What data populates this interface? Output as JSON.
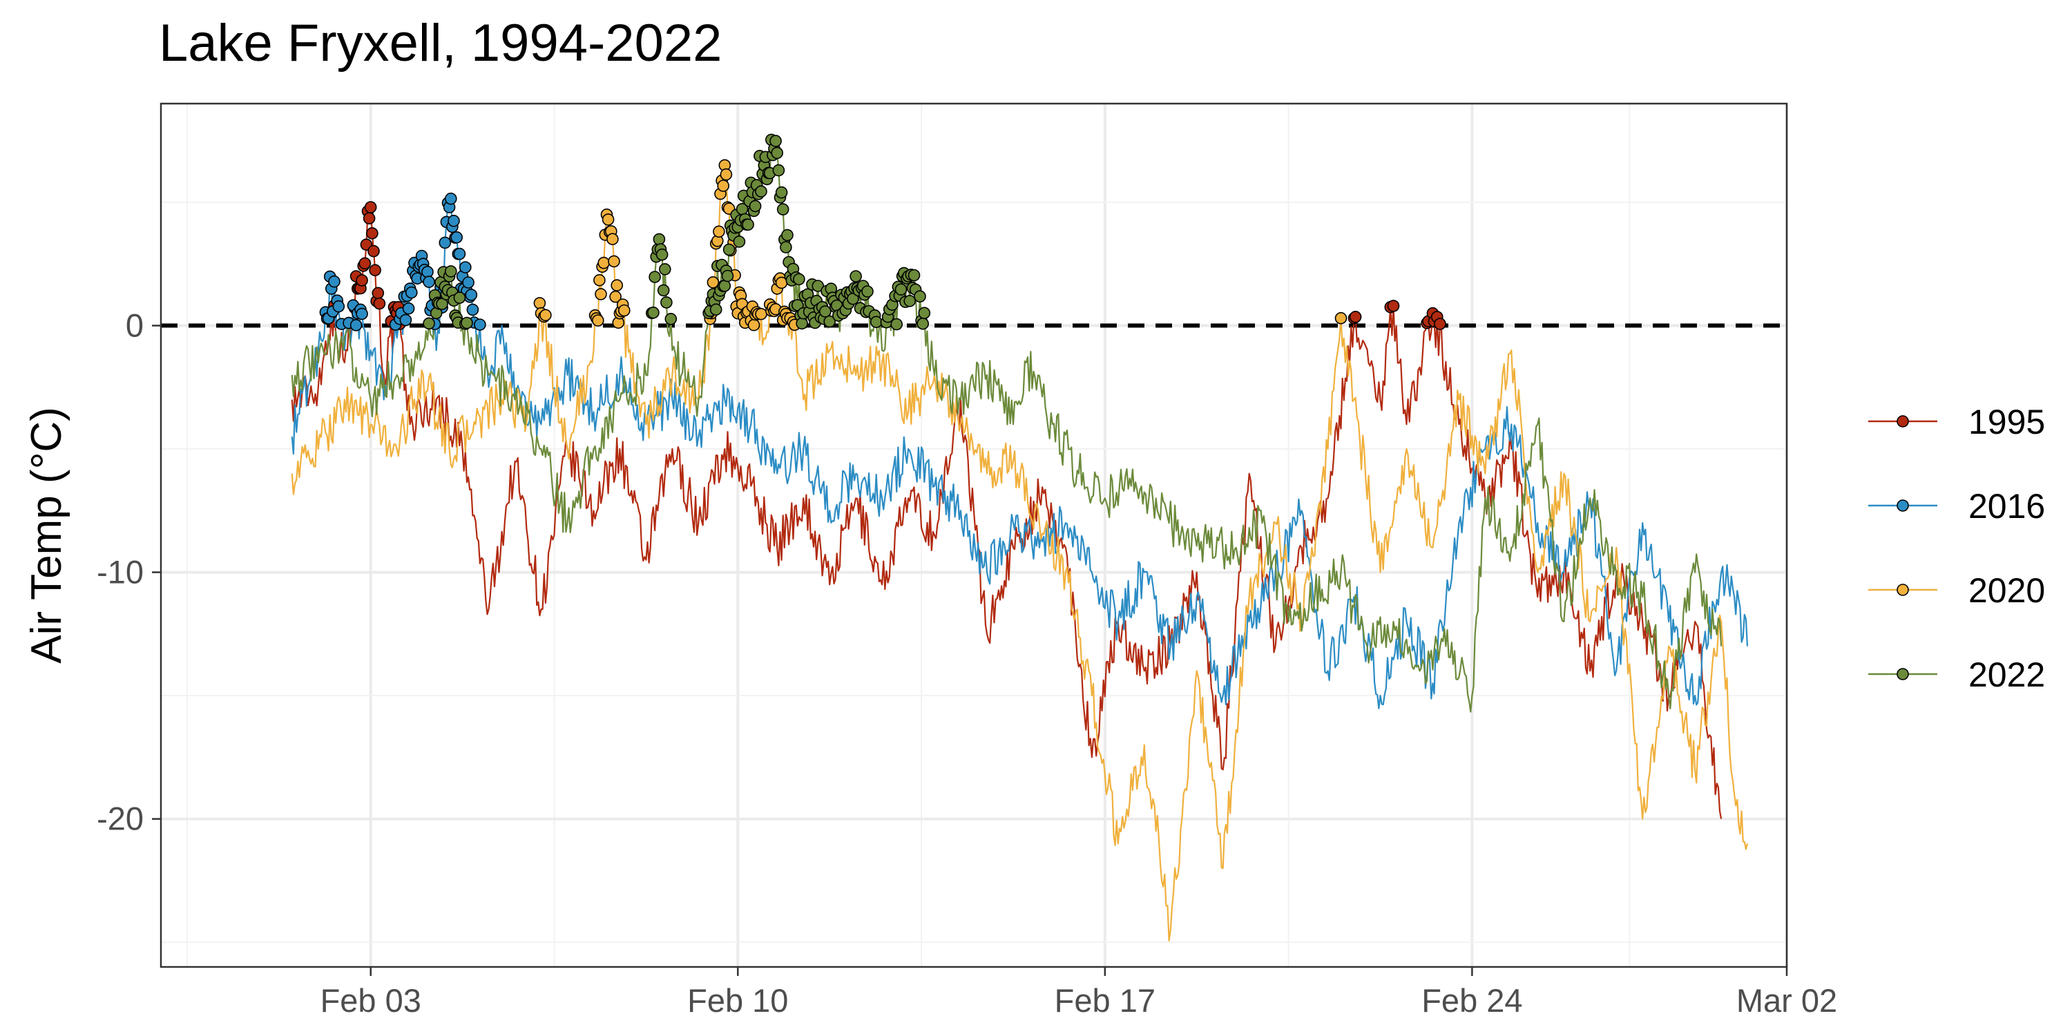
{
  "chart_data": {
    "type": "line",
    "title": "Lake Fryxell, 1994-2022",
    "xlabel": "",
    "ylabel": "Air Temp (°C)",
    "x_axis": {
      "type": "date-of-year",
      "range": [
        "Jan 30",
        "Mar 02"
      ],
      "ticks": [
        {
          "date": "Feb 03",
          "label": "Feb 03"
        },
        {
          "date": "Feb 10",
          "label": "Feb 10"
        },
        {
          "date": "Feb 17",
          "label": "Feb 17"
        },
        {
          "date": "Feb 24",
          "label": "Feb 24"
        },
        {
          "date": "Mar 02",
          "label": "Mar 02"
        }
      ]
    },
    "y_axis": {
      "range": [
        -26,
        9
      ],
      "ticks": [
        {
          "value": 0,
          "label": "0"
        },
        {
          "value": -10,
          "label": "-10"
        },
        {
          "value": -20,
          "label": "-20"
        }
      ]
    },
    "grid": true,
    "reference_line": {
      "y": 0,
      "style": "dashed",
      "color": "#000000"
    },
    "points_marked": "readings above 0 °C are shown as circles",
    "legend": {
      "position": "right",
      "entries": [
        "1995",
        "2016",
        "2020",
        "2022"
      ]
    },
    "series": [
      {
        "name": "1995",
        "color": "#b22a0f",
        "data": [
          [
            "Feb 01 12:00",
            -3
          ],
          [
            "Feb 02 00:00",
            -2.5
          ],
          [
            "Feb 02 06:00",
            0.5
          ],
          [
            "Feb 02 12:00",
            -1.5
          ],
          [
            "Feb 02 18:00",
            1.5
          ],
          [
            "Feb 03 00:00",
            4.8
          ],
          [
            "Feb 03 06:00",
            -2
          ],
          [
            "Feb 03 12:00",
            0.5
          ],
          [
            "Feb 03 18:00",
            -4
          ],
          [
            "Feb 04 06:00",
            -3
          ],
          [
            "Feb 04 18:00",
            -5
          ],
          [
            "Feb 05 06:00",
            -11.5
          ],
          [
            "Feb 05 18:00",
            -5.5
          ],
          [
            "Feb 06 06:00",
            -11.5
          ],
          [
            "Feb 06 18:00",
            -5
          ],
          [
            "Feb 07 06:00",
            -7.5
          ],
          [
            "Feb 07 18:00",
            -5
          ],
          [
            "Feb 08 06:00",
            -9.5
          ],
          [
            "Feb 08 18:00",
            -5
          ],
          [
            "Feb 09 06:00",
            -8
          ],
          [
            "Feb 09 18:00",
            -5
          ],
          [
            "Feb 10 06:00",
            -6.5
          ],
          [
            "Feb 10 18:00",
            -9
          ],
          [
            "Feb 11 06:00",
            -7
          ],
          [
            "Feb 11 18:00",
            -10.5
          ],
          [
            "Feb 12 06:00",
            -7
          ],
          [
            "Feb 12 18:00",
            -10.5
          ],
          [
            "Feb 13 06:00",
            -7
          ],
          [
            "Feb 13 18:00",
            -8.5
          ],
          [
            "Feb 14 06:00",
            -3
          ],
          [
            "Feb 14 18:00",
            -12.5
          ],
          [
            "Feb 15 06:00",
            -9
          ],
          [
            "Feb 15 18:00",
            -7
          ],
          [
            "Feb 16 06:00",
            -9
          ],
          [
            "Feb 16 18:00",
            -17.5
          ],
          [
            "Feb 17 06:00",
            -12
          ],
          [
            "Feb 17 18:00",
            -14
          ],
          [
            "Feb 18 06:00",
            -13
          ],
          [
            "Feb 18 18:00",
            -10
          ],
          [
            "Feb 19 06:00",
            -18
          ],
          [
            "Feb 19 18:00",
            -6
          ],
          [
            "Feb 20 06:00",
            -13
          ],
          [
            "Feb 20 18:00",
            -9
          ],
          [
            "Feb 21 06:00",
            -7
          ],
          [
            "Feb 21 18:00",
            0.3
          ],
          [
            "Feb 22 06:00",
            -3
          ],
          [
            "Feb 22 12:00",
            0.8
          ],
          [
            "Feb 22 18:00",
            -4
          ],
          [
            "Feb 23 06:00",
            0.5
          ],
          [
            "Feb 23 18:00",
            -4
          ],
          [
            "Feb 24 06:00",
            -7
          ],
          [
            "Feb 24 18:00",
            -5
          ],
          [
            "Feb 25 06:00",
            -11
          ],
          [
            "Feb 25 18:00",
            -10
          ],
          [
            "Feb 26 06:00",
            -14
          ],
          [
            "Feb 26 18:00",
            -10
          ],
          [
            "Feb 27 06:00",
            -12
          ],
          [
            "Feb 27 18:00",
            -15
          ],
          [
            "Feb 28 06:00",
            -12
          ],
          [
            "Feb 28 18:00",
            -20
          ]
        ]
      },
      {
        "name": "2016",
        "color": "#2b8cc4",
        "data": [
          [
            "Feb 01 12:00",
            -4.5
          ],
          [
            "Feb 02 00:00",
            -1
          ],
          [
            "Feb 02 06:00",
            1.5
          ],
          [
            "Feb 02 12:00",
            -1
          ],
          [
            "Feb 02 18:00",
            0.5
          ],
          [
            "Feb 03 00:00",
            -1
          ],
          [
            "Feb 03 06:00",
            -3
          ],
          [
            "Feb 03 12:00",
            -0.5
          ],
          [
            "Feb 03 18:00",
            1.5
          ],
          [
            "Feb 04 00:00",
            2.5
          ],
          [
            "Feb 04 06:00",
            -1
          ],
          [
            "Feb 04 12:00",
            4.8
          ],
          [
            "Feb 04 18:00",
            2
          ],
          [
            "Feb 05 00:00",
            0
          ],
          [
            "Feb 05 06:00",
            -2.5
          ],
          [
            "Feb 05 12:00",
            0
          ],
          [
            "Feb 05 18:00",
            -3
          ],
          [
            "Feb 06 06:00",
            -4
          ],
          [
            "Feb 06 18:00",
            -2
          ],
          [
            "Feb 07 06:00",
            -3.5
          ],
          [
            "Feb 07 18:00",
            -2
          ],
          [
            "Feb 08 06:00",
            -4
          ],
          [
            "Feb 08 18:00",
            -3
          ],
          [
            "Feb 09 06:00",
            -4.5
          ],
          [
            "Feb 09 18:00",
            -3
          ],
          [
            "Feb 10 06:00",
            -4
          ],
          [
            "Feb 10 18:00",
            -6
          ],
          [
            "Feb 11 06:00",
            -5
          ],
          [
            "Feb 11 18:00",
            -7.5
          ],
          [
            "Feb 12 06:00",
            -6
          ],
          [
            "Feb 12 18:00",
            -7
          ],
          [
            "Feb 13 06:00",
            -5
          ],
          [
            "Feb 13 18:00",
            -6.5
          ],
          [
            "Feb 14 06:00",
            -7.5
          ],
          [
            "Feb 14 18:00",
            -10
          ],
          [
            "Feb 15 06:00",
            -8
          ],
          [
            "Feb 15 18:00",
            -9
          ],
          [
            "Feb 16 06:00",
            -8
          ],
          [
            "Feb 16 18:00",
            -10
          ],
          [
            "Feb 17 06:00",
            -12
          ],
          [
            "Feb 17 18:00",
            -10
          ],
          [
            "Feb 18 06:00",
            -13
          ],
          [
            "Feb 18 18:00",
            -11
          ],
          [
            "Feb 19 06:00",
            -15
          ],
          [
            "Feb 19 18:00",
            -12
          ],
          [
            "Feb 20 06:00",
            -10
          ],
          [
            "Feb 20 18:00",
            -7.5
          ],
          [
            "Feb 21 06:00",
            -14
          ],
          [
            "Feb 21 18:00",
            -11
          ],
          [
            "Feb 22 06:00",
            -15
          ],
          [
            "Feb 22 18:00",
            -12
          ],
          [
            "Feb 23 06:00",
            -14.5
          ],
          [
            "Feb 23 18:00",
            -8
          ],
          [
            "Feb 24 06:00",
            -5
          ],
          [
            "Feb 24 18:00",
            -4
          ],
          [
            "Feb 25 06:00",
            -8
          ],
          [
            "Feb 25 18:00",
            -10
          ],
          [
            "Feb 26 06:00",
            -7
          ],
          [
            "Feb 26 18:00",
            -14
          ],
          [
            "Feb 27 06:00",
            -8
          ],
          [
            "Feb 27 18:00",
            -12
          ],
          [
            "Feb 28 06:00",
            -15
          ],
          [
            "Feb 28 18:00",
            -10
          ],
          [
            "Mar 01 00:00",
            -11
          ],
          [
            "Mar 01 06:00",
            -13
          ]
        ]
      },
      {
        "name": "2020",
        "color": "#f0b03c",
        "data": [
          [
            "Feb 01 12:00",
            -6
          ],
          [
            "Feb 02 00:00",
            -5
          ],
          [
            "Feb 02 12:00",
            -3
          ],
          [
            "Feb 03 00:00",
            -4
          ],
          [
            "Feb 03 12:00",
            -5
          ],
          [
            "Feb 04 00:00",
            -2
          ],
          [
            "Feb 04 12:00",
            -5
          ],
          [
            "Feb 05 00:00",
            -4
          ],
          [
            "Feb 05 12:00",
            -3
          ],
          [
            "Feb 06 00:00",
            -3.5
          ],
          [
            "Feb 06 06:00",
            0.5
          ],
          [
            "Feb 06 18:00",
            -5
          ],
          [
            "Feb 07 06:00",
            -1
          ],
          [
            "Feb 07 12:00",
            4.5
          ],
          [
            "Feb 07 18:00",
            0.5
          ],
          [
            "Feb 08 06:00",
            -4
          ],
          [
            "Feb 08 18:00",
            -2
          ],
          [
            "Feb 09 06:00",
            -3
          ],
          [
            "Feb 09 12:00",
            0.5
          ],
          [
            "Feb 09 18:00",
            6.5
          ],
          [
            "Feb 10 00:00",
            0.5
          ],
          [
            "Feb 10 06:00",
            0.2
          ],
          [
            "Feb 10 12:00",
            -0.5
          ],
          [
            "Feb 10 18:00",
            1.5
          ],
          [
            "Feb 11 00:00",
            0.3
          ],
          [
            "Feb 11 06:00",
            -3
          ],
          [
            "Feb 11 18:00",
            -1
          ],
          [
            "Feb 12 06:00",
            -2
          ],
          [
            "Feb 12 18:00",
            -1.5
          ],
          [
            "Feb 13 06:00",
            -3.5
          ],
          [
            "Feb 13 18:00",
            -2
          ],
          [
            "Feb 14 06:00",
            -4
          ],
          [
            "Feb 14 18:00",
            -6
          ],
          [
            "Feb 15 06:00",
            -5.5
          ],
          [
            "Feb 15 18:00",
            -8
          ],
          [
            "Feb 16 06:00",
            -10
          ],
          [
            "Feb 16 18:00",
            -15
          ],
          [
            "Feb 17 06:00",
            -21
          ],
          [
            "Feb 17 18:00",
            -17
          ],
          [
            "Feb 18 06:00",
            -24.5
          ],
          [
            "Feb 18 18:00",
            -14
          ],
          [
            "Feb 19 06:00",
            -22
          ],
          [
            "Feb 19 18:00",
            -11
          ],
          [
            "Feb 20 06:00",
            -8
          ],
          [
            "Feb 20 18:00",
            -12
          ],
          [
            "Feb 21 06:00",
            -5
          ],
          [
            "Feb 21 12:00",
            0.3
          ],
          [
            "Feb 21 18:00",
            -3
          ],
          [
            "Feb 22 06:00",
            -10
          ],
          [
            "Feb 22 18:00",
            -5
          ],
          [
            "Feb 23 06:00",
            -9
          ],
          [
            "Feb 23 18:00",
            -3
          ],
          [
            "Feb 24 06:00",
            -6
          ],
          [
            "Feb 24 18:00",
            -1
          ],
          [
            "Feb 25 06:00",
            -10
          ],
          [
            "Feb 25 18:00",
            -6
          ],
          [
            "Feb 26 06:00",
            -12
          ],
          [
            "Feb 26 18:00",
            -9
          ],
          [
            "Feb 27 06:00",
            -20
          ],
          [
            "Feb 27 18:00",
            -13
          ],
          [
            "Feb 28 06:00",
            -18
          ],
          [
            "Feb 28 18:00",
            -12
          ],
          [
            "Mar 01 00:00",
            -19
          ],
          [
            "Mar 01 06:00",
            -21
          ]
        ]
      },
      {
        "name": "2022",
        "color": "#6b8a3a",
        "data": [
          [
            "Feb 01 12:00",
            -2
          ],
          [
            "Feb 02 00:00",
            -1.5
          ],
          [
            "Feb 02 12:00",
            -0.5
          ],
          [
            "Feb 03 00:00",
            -3
          ],
          [
            "Feb 03 12:00",
            -2
          ],
          [
            "Feb 04 00:00",
            -1
          ],
          [
            "Feb 04 12:00",
            2
          ],
          [
            "Feb 04 18:00",
            0
          ],
          [
            "Feb 05 06:00",
            -2
          ],
          [
            "Feb 05 18:00",
            -3
          ],
          [
            "Feb 06 06:00",
            -5
          ],
          [
            "Feb 06 18:00",
            -8
          ],
          [
            "Feb 07 06:00",
            -5
          ],
          [
            "Feb 07 18:00",
            -3
          ],
          [
            "Feb 08 06:00",
            -2
          ],
          [
            "Feb 08 12:00",
            3.5
          ],
          [
            "Feb 08 18:00",
            -1
          ],
          [
            "Feb 09 06:00",
            -3
          ],
          [
            "Feb 09 12:00",
            1
          ],
          [
            "Feb 10 00:00",
            4
          ],
          [
            "Feb 10 12:00",
            6.5
          ],
          [
            "Feb 10 18:00",
            7
          ],
          [
            "Feb 11 00:00",
            2
          ],
          [
            "Feb 11 06:00",
            0.5
          ],
          [
            "Feb 11 12:00",
            1
          ],
          [
            "Feb 12 00:00",
            0.5
          ],
          [
            "Feb 12 06:00",
            2
          ],
          [
            "Feb 12 18:00",
            -1
          ],
          [
            "Feb 13 06:00",
            2
          ],
          [
            "Feb 13 12:00",
            0.2
          ],
          [
            "Feb 13 18:00",
            -2
          ],
          [
            "Feb 14 06:00",
            -3
          ],
          [
            "Feb 14 18:00",
            -2
          ],
          [
            "Feb 15 06:00",
            -4
          ],
          [
            "Feb 15 12:00",
            -1.5
          ],
          [
            "Feb 16 00:00",
            -4
          ],
          [
            "Feb 16 12:00",
            -6
          ],
          [
            "Feb 17 00:00",
            -7
          ],
          [
            "Feb 17 12:00",
            -6.5
          ],
          [
            "Feb 18 00:00",
            -7.5
          ],
          [
            "Feb 18 12:00",
            -8.5
          ],
          [
            "Feb 19 00:00",
            -9
          ],
          [
            "Feb 19 12:00",
            -9
          ],
          [
            "Feb 20 00:00",
            -8
          ],
          [
            "Feb 20 12:00",
            -12
          ],
          [
            "Feb 21 00:00",
            -11
          ],
          [
            "Feb 21 12:00",
            -10
          ],
          [
            "Feb 22 00:00",
            -13
          ],
          [
            "Feb 22 12:00",
            -12
          ],
          [
            "Feb 23 00:00",
            -14
          ],
          [
            "Feb 23 12:00",
            -13
          ],
          [
            "Feb 24 00:00",
            -15
          ],
          [
            "Feb 24 06:00",
            -7
          ],
          [
            "Feb 24 18:00",
            -9
          ],
          [
            "Feb 25 06:00",
            -4
          ],
          [
            "Feb 25 18:00",
            -12
          ],
          [
            "Feb 26 06:00",
            -7
          ],
          [
            "Feb 26 18:00",
            -10
          ],
          [
            "Feb 27 06:00",
            -11
          ],
          [
            "Feb 27 18:00",
            -15
          ],
          [
            "Feb 28 06:00",
            -10
          ],
          [
            "Feb 28 18:00",
            -13
          ]
        ]
      }
    ]
  }
}
